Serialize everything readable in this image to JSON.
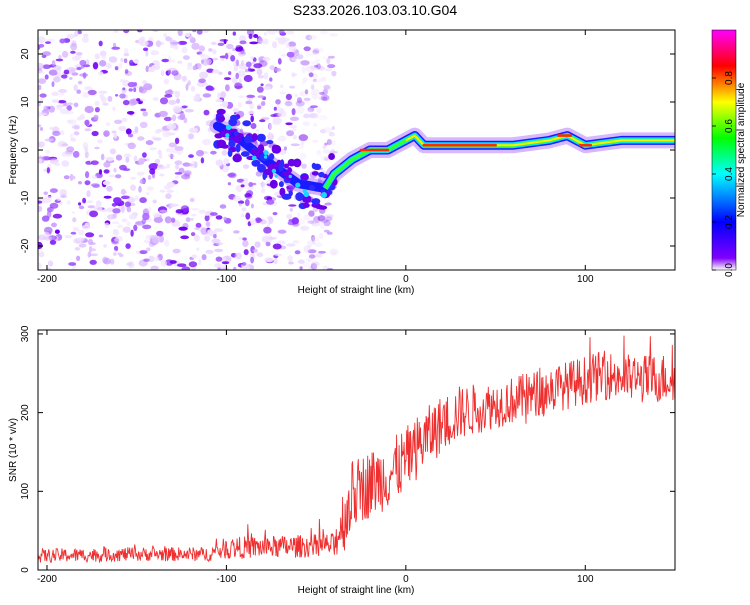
{
  "figure": {
    "title": "S233.2026.103.03.10.G04"
  },
  "chart_data": [
    {
      "type": "heatmap",
      "xlabel": "Height of straight line (km)",
      "ylabel": "Frequency (Hz)",
      "xlim": [
        -205,
        150
      ],
      "ylim": [
        -25,
        25
      ],
      "xticks": [
        -200,
        -100,
        0,
        100
      ],
      "yticks": [
        -20,
        -10,
        0,
        10,
        20
      ],
      "colorbar": {
        "label": "Normalized spectral amplitude",
        "range": [
          0,
          1
        ],
        "ticks": [
          "0.0",
          "0.2",
          "0.4",
          "0.6",
          "0.8"
        ],
        "colors": [
          "#ffffff",
          "#7f00ff",
          "#0000ff",
          "#00ffff",
          "#00ff00",
          "#ffff00",
          "#ff0000",
          "#ff00ff"
        ]
      },
      "noise_region": {
        "x_from": -205,
        "x_to": -40
      },
      "signal_track": [
        {
          "x": -105,
          "y": 5
        },
        {
          "x": -95,
          "y": 3
        },
        {
          "x": -85,
          "y": 0
        },
        {
          "x": -75,
          "y": -3
        },
        {
          "x": -60,
          "y": -7
        },
        {
          "x": -45,
          "y": -8
        },
        {
          "x": -40,
          "y": -5
        },
        {
          "x": -30,
          "y": -2
        },
        {
          "x": -20,
          "y": 0
        },
        {
          "x": -10,
          "y": 0
        },
        {
          "x": 0,
          "y": 2
        },
        {
          "x": 5,
          "y": 3
        },
        {
          "x": 10,
          "y": 1
        },
        {
          "x": 20,
          "y": 1
        },
        {
          "x": 40,
          "y": 1
        },
        {
          "x": 60,
          "y": 1
        },
        {
          "x": 80,
          "y": 2
        },
        {
          "x": 90,
          "y": 3
        },
        {
          "x": 100,
          "y": 1
        },
        {
          "x": 120,
          "y": 2
        },
        {
          "x": 150,
          "y": 2
        }
      ],
      "peak_segments": [
        {
          "x_from": -25,
          "x_to": -10,
          "y": 0
        },
        {
          "x_from": 10,
          "x_to": 50,
          "y": 1
        },
        {
          "x_from": 85,
          "x_to": 92,
          "y": 3
        },
        {
          "x_from": 97,
          "x_to": 103,
          "y": 1
        }
      ]
    },
    {
      "type": "line",
      "xlabel": "Height of straight line (km)",
      "ylabel": "SNR (10 * v/v)",
      "xlim": [
        -205,
        150
      ],
      "ylim": [
        0,
        305
      ],
      "xticks": [
        -200,
        -100,
        0,
        100
      ],
      "yticks": [
        0,
        100,
        200,
        300
      ],
      "color": "#ef2f2f",
      "trend": [
        {
          "x": -205,
          "y": 18
        },
        {
          "x": -150,
          "y": 20
        },
        {
          "x": -110,
          "y": 20
        },
        {
          "x": -100,
          "y": 28
        },
        {
          "x": -60,
          "y": 30
        },
        {
          "x": -40,
          "y": 32
        },
        {
          "x": -30,
          "y": 95
        },
        {
          "x": -20,
          "y": 110
        },
        {
          "x": -10,
          "y": 120
        },
        {
          "x": 0,
          "y": 140
        },
        {
          "x": 10,
          "y": 165
        },
        {
          "x": 20,
          "y": 185
        },
        {
          "x": 30,
          "y": 200
        },
        {
          "x": 50,
          "y": 210
        },
        {
          "x": 70,
          "y": 222
        },
        {
          "x": 90,
          "y": 235
        },
        {
          "x": 110,
          "y": 248
        },
        {
          "x": 130,
          "y": 242
        },
        {
          "x": 150,
          "y": 245
        }
      ],
      "noise_amplitude": [
        {
          "x": -205,
          "y": 9
        },
        {
          "x": -110,
          "y": 9
        },
        {
          "x": -100,
          "y": 14
        },
        {
          "x": -40,
          "y": 15
        },
        {
          "x": -35,
          "y": 45
        },
        {
          "x": 0,
          "y": 42
        },
        {
          "x": 50,
          "y": 30
        },
        {
          "x": 150,
          "y": 32
        }
      ]
    }
  ]
}
